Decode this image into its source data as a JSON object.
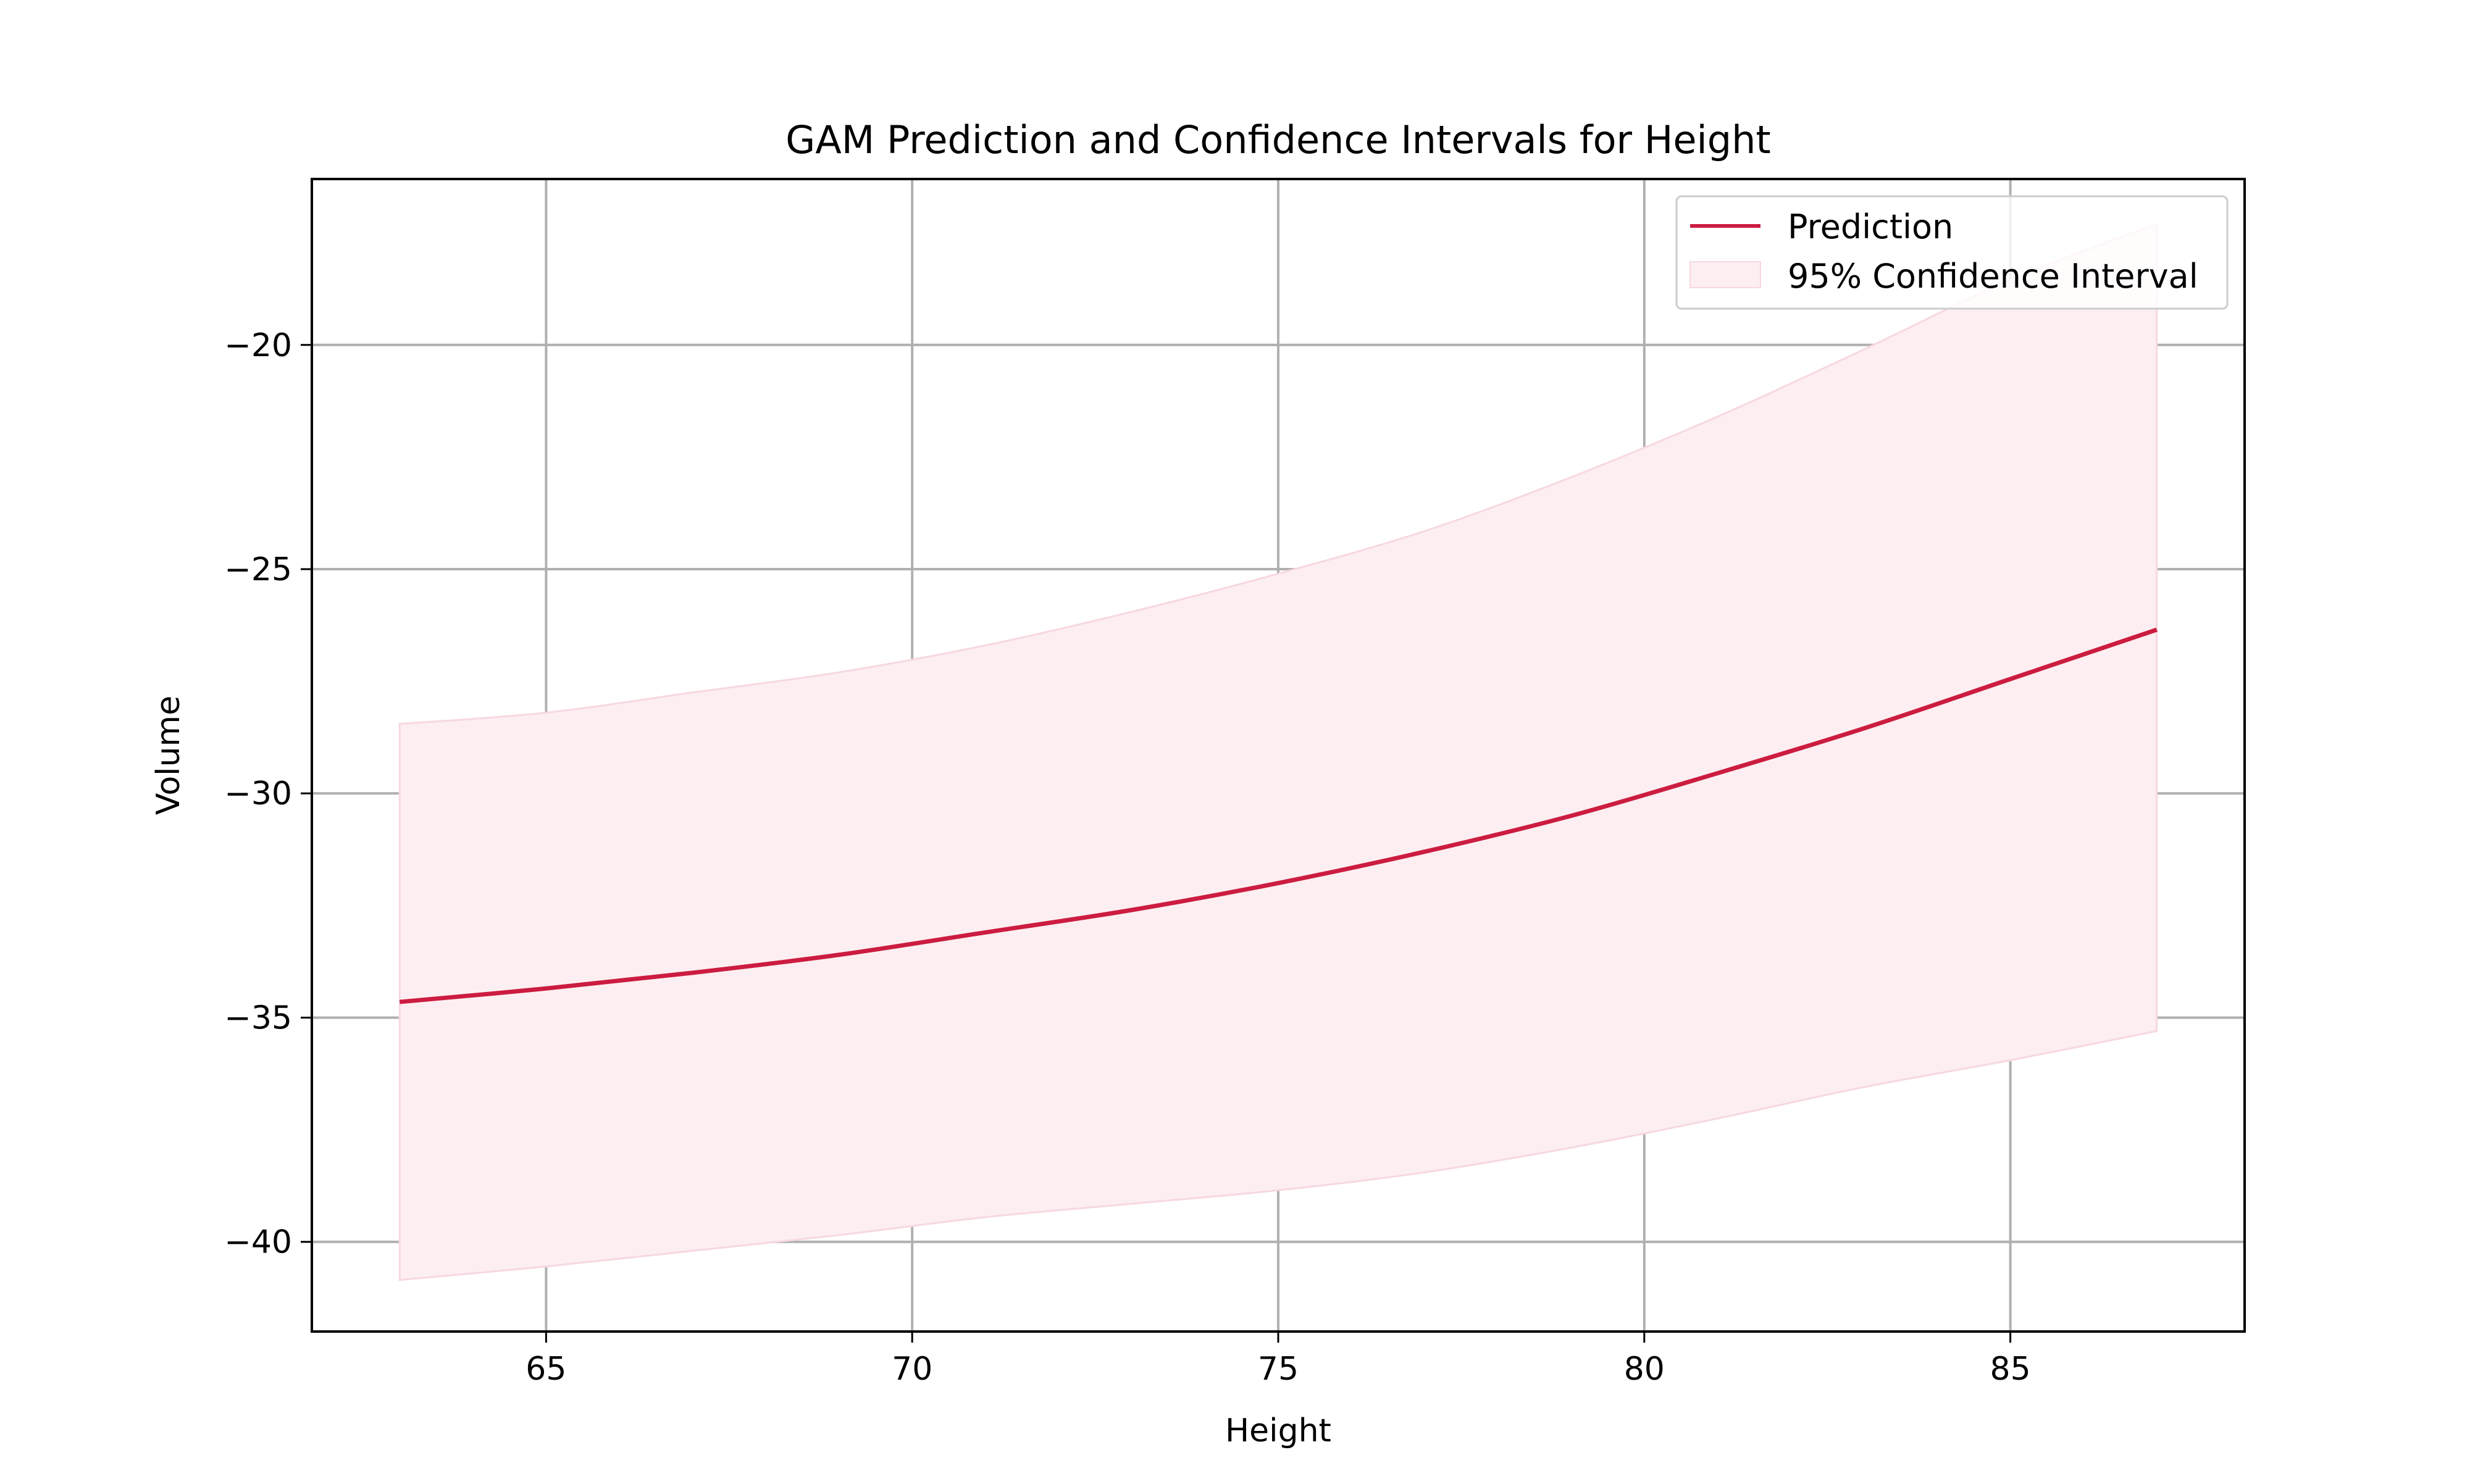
{
  "colors": {
    "line": "#cc1c40",
    "band": "#fdeef1",
    "band_edge": "#f7d8df",
    "grid": "#b0b0b0",
    "axes": "#000000"
  },
  "chart_data": {
    "type": "line",
    "title": "GAM Prediction and Confidence Intervals for Height",
    "xlabel": "Height",
    "ylabel": "Volume",
    "xlim": [
      61.8,
      88.2
    ],
    "ylim": [
      -42.0,
      -16.3
    ],
    "xticks": [
      65,
      70,
      75,
      80,
      85
    ],
    "yticks": [
      -20,
      -25,
      -30,
      -35,
      -40
    ],
    "xtick_labels": [
      "65",
      "70",
      "75",
      "80",
      "85"
    ],
    "ytick_labels": [
      "−20",
      "−25",
      "−30",
      "−35",
      "−40"
    ],
    "grid": true,
    "legend_position": "top-right",
    "legend": {
      "line_label": "Prediction",
      "band_label": "95% Confidence Interval"
    },
    "x": [
      63,
      65,
      67,
      69,
      71,
      73,
      75,
      77,
      79,
      81,
      83,
      85,
      87
    ],
    "series": [
      {
        "name": "Prediction",
        "type": "line",
        "values": [
          -34.65,
          -34.35,
          -34.0,
          -33.6,
          -33.1,
          -32.6,
          -32.0,
          -31.3,
          -30.5,
          -29.55,
          -28.55,
          -27.45,
          -26.35
        ]
      },
      {
        "name": "95% Confidence Interval",
        "type": "area",
        "lower": [
          -40.85,
          -40.55,
          -40.2,
          -39.85,
          -39.45,
          -39.15,
          -38.85,
          -38.45,
          -37.9,
          -37.25,
          -36.55,
          -35.95,
          -35.3
        ],
        "upper": [
          -28.45,
          -28.2,
          -27.75,
          -27.3,
          -26.7,
          -25.95,
          -25.1,
          -24.15,
          -22.95,
          -21.6,
          -20.1,
          -18.55,
          -17.3
        ]
      }
    ]
  }
}
